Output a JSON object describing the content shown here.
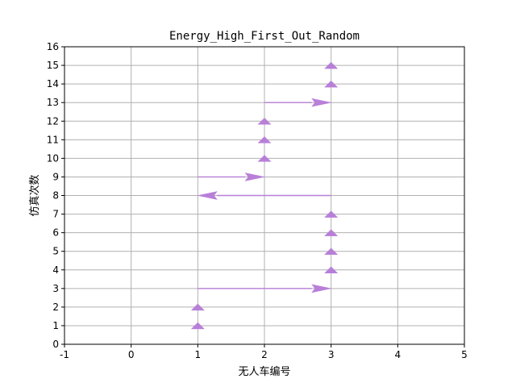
{
  "chart_data": {
    "type": "quiver",
    "title": "Energy_High_First_Out_Random",
    "xlabel": "无人车编号",
    "ylabel": "仿真次数",
    "xlim": [
      -1,
      5
    ],
    "ylim": [
      0,
      16
    ],
    "xticks": [
      -1,
      0,
      1,
      2,
      3,
      4,
      5
    ],
    "yticks": [
      0,
      1,
      2,
      3,
      4,
      5,
      6,
      7,
      8,
      9,
      10,
      11,
      12,
      13,
      14,
      15,
      16
    ],
    "grid": true,
    "arrow_color": "#b87fd9",
    "arrows": [
      {
        "x0": 1,
        "y0": 1,
        "x1": 1,
        "y1": 1
      },
      {
        "x0": 1,
        "y0": 2,
        "x1": 1,
        "y1": 2
      },
      {
        "x0": 1,
        "y0": 3,
        "x1": 3,
        "y1": 3
      },
      {
        "x0": 3,
        "y0": 4,
        "x1": 3,
        "y1": 4
      },
      {
        "x0": 3,
        "y0": 5,
        "x1": 3,
        "y1": 5
      },
      {
        "x0": 3,
        "y0": 6,
        "x1": 3,
        "y1": 6
      },
      {
        "x0": 3,
        "y0": 7,
        "x1": 3,
        "y1": 7
      },
      {
        "x0": 3,
        "y0": 8,
        "x1": 1,
        "y1": 8
      },
      {
        "x0": 1,
        "y0": 9,
        "x1": 2,
        "y1": 9
      },
      {
        "x0": 2,
        "y0": 10,
        "x1": 2,
        "y1": 10
      },
      {
        "x0": 2,
        "y0": 11,
        "x1": 2,
        "y1": 11
      },
      {
        "x0": 2,
        "y0": 12,
        "x1": 2,
        "y1": 12
      },
      {
        "x0": 2,
        "y0": 13,
        "x1": 3,
        "y1": 13
      },
      {
        "x0": 3,
        "y0": 14,
        "x1": 3,
        "y1": 14
      },
      {
        "x0": 3,
        "y0": 15,
        "x1": 3,
        "y1": 15
      }
    ]
  }
}
